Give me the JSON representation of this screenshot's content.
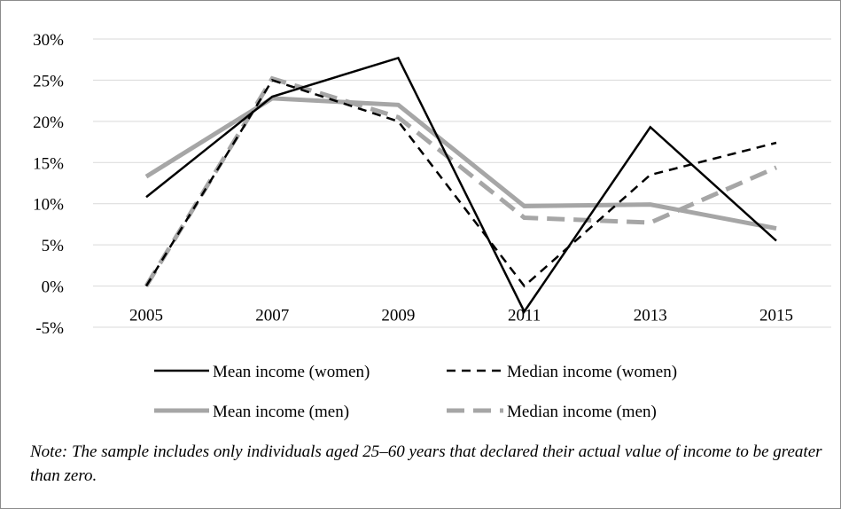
{
  "chart_data": {
    "type": "line",
    "categories": [
      "2005",
      "2007",
      "2009",
      "2011",
      "2013",
      "2015"
    ],
    "ylim": [
      -5,
      30
    ],
    "yticks": [
      -5,
      0,
      5,
      10,
      15,
      20,
      25,
      30
    ],
    "ytick_labels": [
      "-5%",
      "0%",
      "5%",
      "10%",
      "15%",
      "20%",
      "25%",
      "30%"
    ],
    "grid": "horizontal",
    "legend_position": "bottom",
    "series": [
      {
        "name": "Mean income (women)",
        "color": "#000000",
        "style": "solid",
        "values": [
          10.8,
          23.0,
          27.7,
          -3.1,
          19.3,
          5.5
        ]
      },
      {
        "name": "Median income (women)",
        "color": "#000000",
        "style": "dashed",
        "values": [
          0.0,
          25.0,
          20.0,
          0.0,
          13.5,
          17.4
        ]
      },
      {
        "name": "Mean income (men)",
        "color": "#a6a6a6",
        "style": "solid",
        "values": [
          13.3,
          22.8,
          22.0,
          9.7,
          9.9,
          7.0
        ]
      },
      {
        "name": "Median income (men)",
        "color": "#a6a6a6",
        "style": "dashed",
        "values": [
          0.0,
          25.2,
          20.5,
          8.3,
          7.7,
          14.4
        ]
      }
    ]
  },
  "note": "Note: The sample includes only individuals aged 25–60 years that declared their actual value of income to be greater than zero."
}
